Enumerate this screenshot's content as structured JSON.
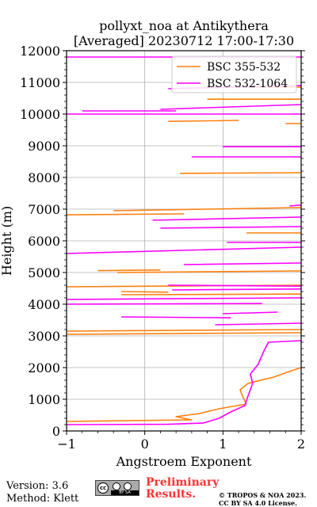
{
  "footer": {
    "version": "Version: 3.6",
    "method": "Method: Klett",
    "preliminary": "Preliminary Results.",
    "copyright": "© TROPOS & NOA 2023. CC BY SA 4.0 License.",
    "license_logo": "cc-by-sa-icon",
    "license_logo_text": "BY SA"
  },
  "chart_data": {
    "type": "line",
    "title": "pollyxt_noa at Antikythera",
    "subtitle": "[Averaged] 20230712 17:00-17:30",
    "xlabel": "Angstroem Exponent",
    "ylabel": "Height (m)",
    "xlim": [
      -1,
      2
    ],
    "ylim": [
      0,
      12000
    ],
    "xticks": [
      -1,
      0,
      1,
      2
    ],
    "xtick_labels": [
      "−1",
      "0",
      "1",
      "2"
    ],
    "yticks": [
      0,
      1000,
      2000,
      3000,
      4000,
      5000,
      6000,
      7000,
      8000,
      9000,
      10000,
      11000,
      12000
    ],
    "ytick_labels": [
      "0",
      "1000",
      "2000",
      "3000",
      "4000",
      "5000",
      "6000",
      "7000",
      "8000",
      "9000",
      "10000",
      "11000",
      "12000"
    ],
    "grid": true,
    "legend_position": "top-right",
    "series": [
      {
        "name": "BSC 355-532",
        "color": "#ff7f0e",
        "points": [
          [
            -1,
            300
          ],
          [
            0.6,
            350
          ],
          [
            0.4,
            450
          ],
          [
            0.7,
            550
          ],
          [
            0.95,
            700
          ],
          [
            1.3,
            850
          ],
          [
            1.25,
            1100
          ],
          [
            1.22,
            1300
          ],
          [
            1.32,
            1500
          ],
          [
            1.45,
            1580
          ],
          [
            1.65,
            1700
          ],
          [
            1.82,
            1850
          ],
          [
            2,
            2000
          ],
          [
            null,
            null
          ],
          [
            -1,
            3050
          ],
          [
            2,
            3100
          ],
          [
            null,
            null
          ],
          [
            -1,
            3150
          ],
          [
            2,
            3200
          ],
          [
            null,
            null
          ],
          [
            -0.3,
            4300
          ],
          [
            2,
            4320
          ],
          [
            null,
            null
          ],
          [
            -0.3,
            4400
          ],
          [
            0.3,
            4380
          ],
          [
            null,
            null
          ],
          [
            -1,
            4550
          ],
          [
            2,
            4600
          ],
          [
            null,
            null
          ],
          [
            -0.35,
            5000
          ],
          [
            2,
            5050
          ],
          [
            null,
            null
          ],
          [
            -0.6,
            5060
          ],
          [
            0.2,
            5080
          ],
          [
            null,
            null
          ],
          [
            1.3,
            6250
          ],
          [
            2,
            6250
          ],
          [
            null,
            null
          ],
          [
            -1,
            6820
          ],
          [
            0.5,
            6850
          ],
          [
            null,
            null
          ],
          [
            -0.4,
            6950
          ],
          [
            2,
            7050
          ],
          [
            null,
            null
          ],
          [
            0.45,
            8130
          ],
          [
            2,
            8150
          ],
          [
            null,
            null
          ],
          [
            0.3,
            9770
          ],
          [
            1.2,
            9800
          ],
          [
            null,
            null
          ],
          [
            1.8,
            9700
          ],
          [
            2,
            9700
          ],
          [
            null,
            null
          ],
          [
            0.8,
            10850
          ],
          [
            2,
            10850
          ],
          [
            null,
            null
          ],
          [
            0.8,
            10470
          ],
          [
            2,
            10470
          ]
        ]
      },
      {
        "name": "BSC 532-1064",
        "color": "#ff00ff",
        "points": [
          [
            -1,
            200
          ],
          [
            0.3,
            210
          ],
          [
            0.75,
            250
          ],
          [
            0.95,
            400
          ],
          [
            1.1,
            600
          ],
          [
            1.28,
            800
          ],
          [
            1.32,
            1100
          ],
          [
            1.38,
            1500
          ],
          [
            1.35,
            1800
          ],
          [
            1.45,
            2100
          ],
          [
            1.52,
            2500
          ],
          [
            1.58,
            2800
          ],
          [
            2,
            2850
          ],
          [
            null,
            null
          ],
          [
            0.9,
            3350
          ],
          [
            2,
            3400
          ],
          [
            null,
            null
          ],
          [
            -0.3,
            3600
          ],
          [
            1.1,
            3570
          ],
          [
            null,
            null
          ],
          [
            1.0,
            3700
          ],
          [
            1.7,
            3750
          ],
          [
            null,
            null
          ],
          [
            -1,
            4000
          ],
          [
            1.5,
            4020
          ],
          [
            null,
            null
          ],
          [
            -1,
            4150
          ],
          [
            2,
            4200
          ],
          [
            null,
            null
          ],
          [
            0.35,
            4450
          ],
          [
            2,
            4480
          ],
          [
            null,
            null
          ],
          [
            0.3,
            4600
          ],
          [
            2,
            4570
          ],
          [
            null,
            null
          ],
          [
            0.5,
            5250
          ],
          [
            2,
            5300
          ],
          [
            null,
            null
          ],
          [
            -1,
            5600
          ],
          [
            2,
            5800
          ],
          [
            null,
            null
          ],
          [
            1.05,
            5950
          ],
          [
            2,
            5950
          ],
          [
            null,
            null
          ],
          [
            0.2,
            6400
          ],
          [
            2,
            6450
          ],
          [
            null,
            null
          ],
          [
            0.1,
            6650
          ],
          [
            2,
            6750
          ],
          [
            null,
            null
          ],
          [
            1.85,
            7100
          ],
          [
            2,
            7130
          ],
          [
            null,
            null
          ],
          [
            0.6,
            8650
          ],
          [
            2,
            8650
          ],
          [
            null,
            null
          ],
          [
            1.0,
            8970
          ],
          [
            2,
            8970
          ],
          [
            null,
            null
          ],
          [
            -1,
            10000
          ],
          [
            2,
            10000
          ],
          [
            null,
            null
          ],
          [
            -0.8,
            10100
          ],
          [
            0.4,
            10100
          ],
          [
            null,
            null
          ],
          [
            0.2,
            10150
          ],
          [
            2,
            10300
          ],
          [
            null,
            null
          ],
          [
            0.3,
            10800
          ],
          [
            2,
            10900
          ],
          [
            null,
            null
          ],
          [
            -1,
            11800
          ],
          [
            2,
            11800
          ]
        ]
      }
    ]
  }
}
